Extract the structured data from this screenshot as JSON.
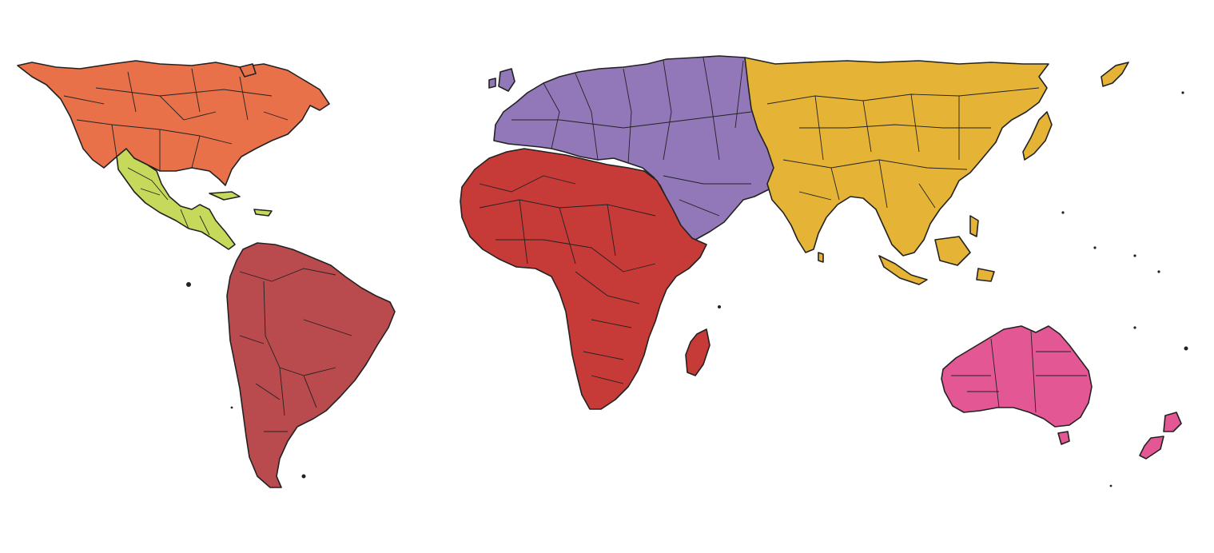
{
  "map": {
    "background": "#ffffff",
    "outline_color": "#222222",
    "regions": [
      {
        "id": "north-america",
        "color": "#E8714A"
      },
      {
        "id": "central-america",
        "color": "#C6D95A"
      },
      {
        "id": "south-america",
        "color": "#B94A4E"
      },
      {
        "id": "europe",
        "color": "#9278B8"
      },
      {
        "id": "africa",
        "color": "#C63A38"
      },
      {
        "id": "asia",
        "color": "#E5B436"
      },
      {
        "id": "oceania",
        "color": "#E35894"
      }
    ]
  }
}
